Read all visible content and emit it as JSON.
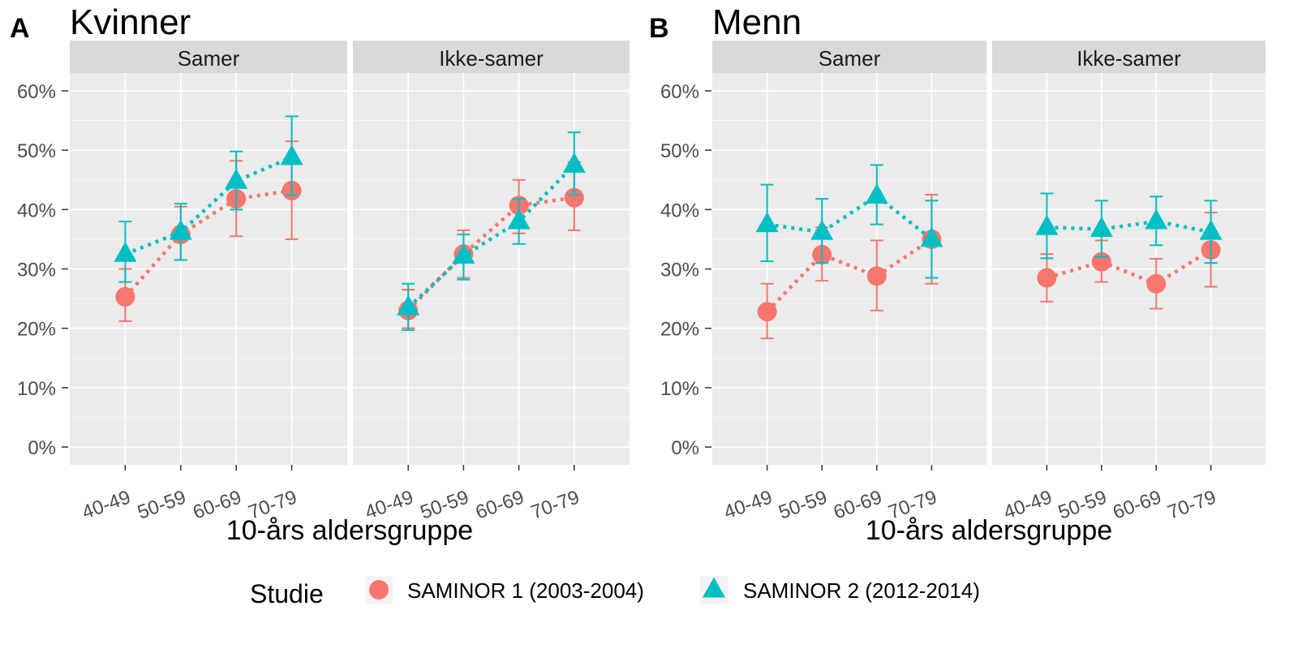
{
  "chart_data": {
    "type": "scatter",
    "y_tick_labels": [
      "0%",
      "10%",
      "20%",
      "30%",
      "40%",
      "50%",
      "60%"
    ],
    "ylim": [
      -3,
      63
    ],
    "ylabel": "",
    "grid": true,
    "categories": [
      "40-49",
      "50-59",
      "60-69",
      "70-79"
    ],
    "legend": {
      "title": "Studie",
      "placement": "bottom",
      "entries": [
        {
          "name": "SAMINOR 1 (2003-2004)",
          "color": "#F8766D",
          "shape": "circle"
        },
        {
          "name": "SAMINOR 2 (2012-2014)",
          "color": "#00BFC4",
          "shape": "triangle"
        }
      ]
    },
    "panels": [
      {
        "letter": "A",
        "title": "Kvinner",
        "xlabel": "10-års aldersgruppe",
        "facets": [
          {
            "label": "Samer",
            "series": [
              {
                "name": "SAMINOR 1 (2003-2004)",
                "values": [
                  25.3,
                  35.8,
                  41.8,
                  43.2
                ],
                "lower": [
                  21.2,
                  31.5,
                  35.5,
                  35.0
                ],
                "upper": [
                  30.0,
                  40.5,
                  48.2,
                  51.5
                ]
              },
              {
                "name": "SAMINOR 2 (2012-2014)",
                "values": [
                  32.5,
                  36.2,
                  44.8,
                  48.8
                ],
                "lower": [
                  27.8,
                  31.5,
                  40.0,
                  42.5
                ],
                "upper": [
                  38.0,
                  41.0,
                  49.8,
                  55.7
                ]
              }
            ]
          },
          {
            "label": "Ikke-samer",
            "series": [
              {
                "name": "SAMINOR 1 (2003-2004)",
                "values": [
                  23.0,
                  32.5,
                  40.7,
                  42.0
                ],
                "lower": [
                  20.0,
                  28.5,
                  36.0,
                  36.5
                ],
                "upper": [
                  26.5,
                  36.5,
                  45.0,
                  48.0
                ]
              },
              {
                "name": "SAMINOR 2 (2012-2014)",
                "values": [
                  23.5,
                  32.2,
                  38.0,
                  47.5
                ],
                "lower": [
                  19.7,
                  28.2,
                  34.2,
                  42.5
                ],
                "upper": [
                  27.5,
                  35.8,
                  41.8,
                  53.0
                ]
              }
            ]
          }
        ]
      },
      {
        "letter": "B",
        "title": "Menn",
        "xlabel": "10-års aldersgruppe",
        "facets": [
          {
            "label": "Samer",
            "series": [
              {
                "name": "SAMINOR 1 (2003-2004)",
                "values": [
                  22.8,
                  32.4,
                  28.8,
                  35.0
                ],
                "lower": [
                  18.3,
                  28.0,
                  23.0,
                  27.5
                ],
                "upper": [
                  27.5,
                  37.0,
                  34.8,
                  42.5
                ]
              },
              {
                "name": "SAMINOR 2 (2012-2014)",
                "values": [
                  37.5,
                  36.2,
                  42.3,
                  35.0
                ],
                "lower": [
                  31.3,
                  31.0,
                  37.5,
                  28.5
                ],
                "upper": [
                  44.2,
                  41.8,
                  47.5,
                  41.5
                ]
              }
            ]
          },
          {
            "label": "Ikke-samer",
            "series": [
              {
                "name": "SAMINOR 1 (2003-2004)",
                "values": [
                  28.5,
                  31.2,
                  27.5,
                  33.2
                ],
                "lower": [
                  24.5,
                  27.8,
                  23.3,
                  27.0
                ],
                "upper": [
                  32.5,
                  34.8,
                  31.7,
                  39.5
                ]
              },
              {
                "name": "SAMINOR 2 (2012-2014)",
                "values": [
                  37.0,
                  36.7,
                  38.0,
                  36.2
                ],
                "lower": [
                  31.8,
                  32.0,
                  34.0,
                  31.0
                ],
                "upper": [
                  42.7,
                  41.5,
                  42.2,
                  41.5
                ]
              }
            ]
          }
        ]
      }
    ]
  }
}
